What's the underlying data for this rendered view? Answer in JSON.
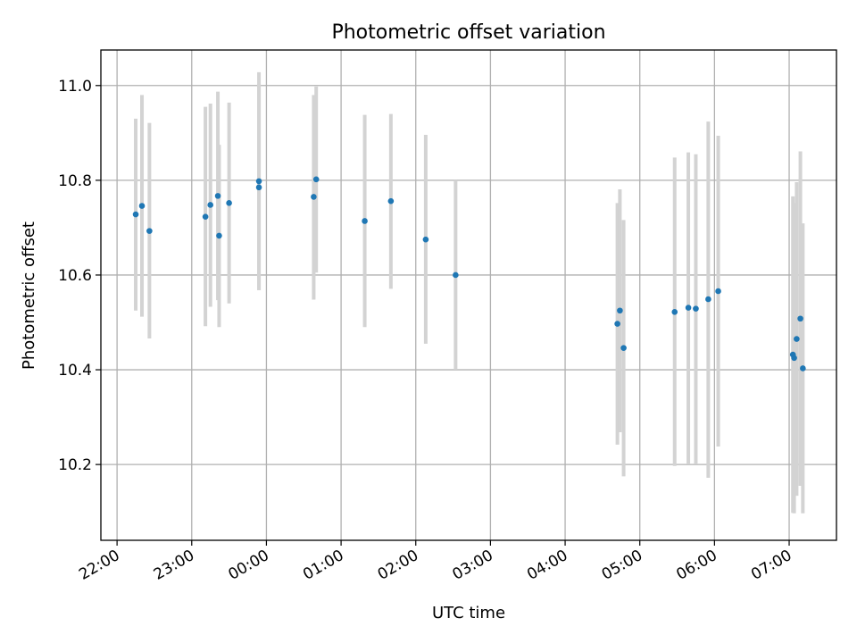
{
  "chart_data": {
    "type": "scatter",
    "title": "Photometric offset variation",
    "xlabel": "UTC time",
    "ylabel": "Photometric offset",
    "x_ticks": [
      "22:00",
      "23:00",
      "00:00",
      "01:00",
      "02:00",
      "03:00",
      "04:00",
      "05:00",
      "06:00",
      "07:00"
    ],
    "y_ticks": [
      "10.2",
      "10.4",
      "10.6",
      "10.8",
      "11.0"
    ],
    "xlim": [
      "21:47",
      "07:38"
    ],
    "ylim": [
      10.04,
      11.075
    ],
    "grid": true,
    "colors": {
      "marker": "#1f77b4",
      "errorbar": "#d3d3d3",
      "grid": "#b0b0b0"
    },
    "series": [
      {
        "points": [
          {
            "x": "22:15",
            "y": 10.728,
            "ylo": 10.525,
            "yhi": 10.93
          },
          {
            "x": "22:20",
            "y": 10.746,
            "ylo": 10.512,
            "yhi": 10.98
          },
          {
            "x": "22:26",
            "y": 10.693,
            "ylo": 10.466,
            "yhi": 10.921
          },
          {
            "x": "23:11",
            "y": 10.723,
            "ylo": 10.492,
            "yhi": 10.955
          },
          {
            "x": "23:15",
            "y": 10.748,
            "ylo": 10.533,
            "yhi": 10.962
          },
          {
            "x": "23:21",
            "y": 10.767,
            "ylo": 10.547,
            "yhi": 10.987
          },
          {
            "x": "23:22",
            "y": 10.683,
            "ylo": 10.49,
            "yhi": 10.875
          },
          {
            "x": "23:30",
            "y": 10.752,
            "ylo": 10.54,
            "yhi": 10.964
          },
          {
            "x": "23:54",
            "y": 10.798,
            "ylo": 10.568,
            "yhi": 11.028
          },
          {
            "x": "23:54",
            "y": 10.785,
            "ylo": 10.568,
            "yhi": 11.003
          },
          {
            "x": "00:38",
            "y": 10.765,
            "ylo": 10.548,
            "yhi": 10.98
          },
          {
            "x": "00:40",
            "y": 10.802,
            "ylo": 10.605,
            "yhi": 10.998
          },
          {
            "x": "01:19",
            "y": 10.714,
            "ylo": 10.49,
            "yhi": 10.938
          },
          {
            "x": "01:40",
            "y": 10.756,
            "ylo": 10.571,
            "yhi": 10.94
          },
          {
            "x": "02:08",
            "y": 10.675,
            "ylo": 10.455,
            "yhi": 10.896
          },
          {
            "x": "02:32",
            "y": 10.6,
            "ylo": 10.4,
            "yhi": 10.8
          },
          {
            "x": "04:42",
            "y": 10.497,
            "ylo": 10.242,
            "yhi": 10.752
          },
          {
            "x": "04:44",
            "y": 10.525,
            "ylo": 10.268,
            "yhi": 10.781
          },
          {
            "x": "04:47",
            "y": 10.446,
            "ylo": 10.175,
            "yhi": 10.716
          },
          {
            "x": "05:28",
            "y": 10.522,
            "ylo": 10.197,
            "yhi": 10.848
          },
          {
            "x": "05:39",
            "y": 10.531,
            "ylo": 10.202,
            "yhi": 10.859
          },
          {
            "x": "05:45",
            "y": 10.529,
            "ylo": 10.202,
            "yhi": 10.855
          },
          {
            "x": "05:55",
            "y": 10.549,
            "ylo": 10.172,
            "yhi": 10.924
          },
          {
            "x": "06:03",
            "y": 10.566,
            "ylo": 10.238,
            "yhi": 10.894
          },
          {
            "x": "07:03",
            "y": 10.432,
            "ylo": 10.098,
            "yhi": 10.766
          },
          {
            "x": "07:04",
            "y": 10.425,
            "ylo": 10.097,
            "yhi": 10.752
          },
          {
            "x": "07:06",
            "y": 10.465,
            "ylo": 10.134,
            "yhi": 10.796
          },
          {
            "x": "07:09",
            "y": 10.508,
            "ylo": 10.155,
            "yhi": 10.861
          },
          {
            "x": "07:11",
            "y": 10.403,
            "ylo": 10.097,
            "yhi": 10.709
          }
        ]
      }
    ]
  }
}
